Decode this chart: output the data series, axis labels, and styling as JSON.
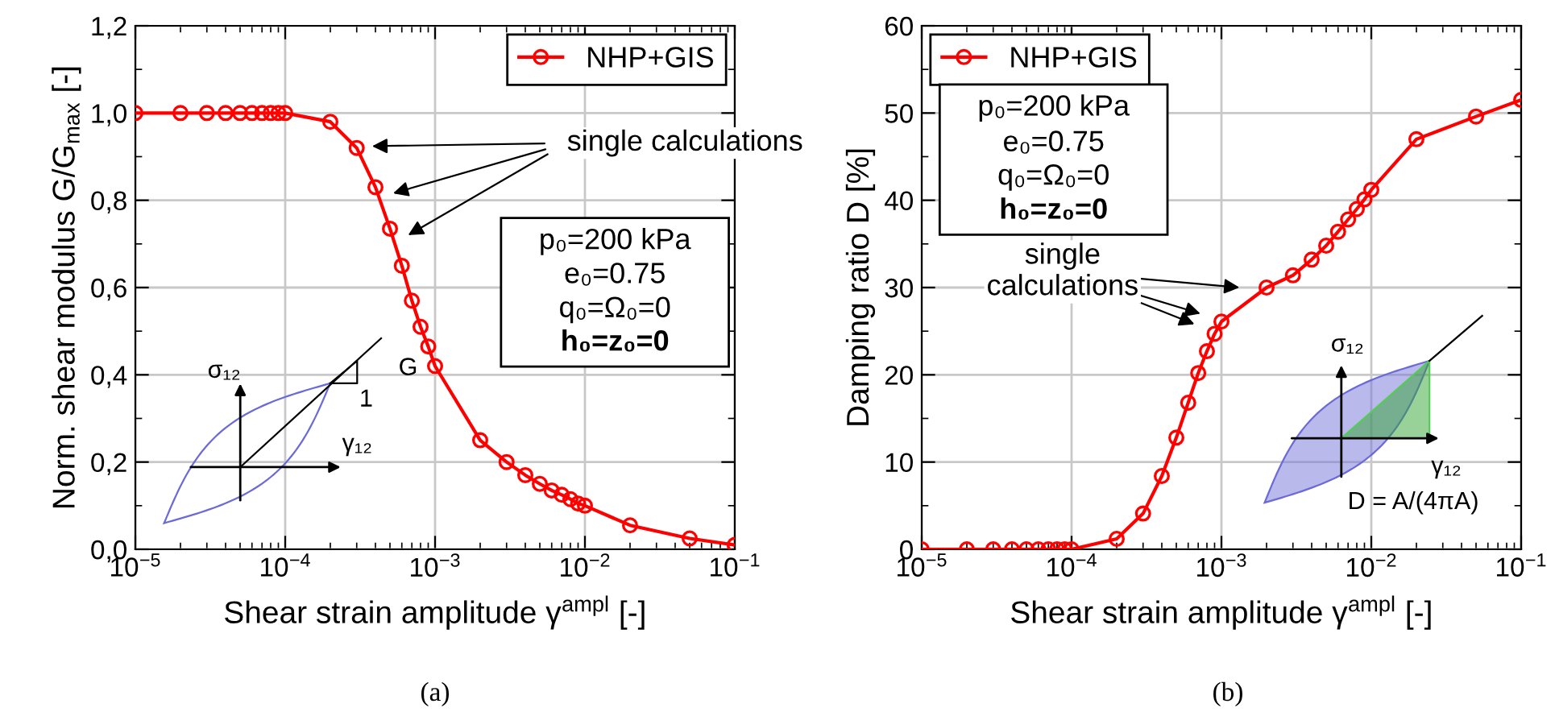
{
  "chart_data": [
    {
      "type": "line",
      "xlabel": "Shear strain amplitude γ$^{ampl}$ [-]",
      "ylabel": "Norm. shear modulus G/G$_{max}$ [-]",
      "log": "x",
      "xlim": [
        1e-05,
        0.1
      ],
      "xticks": [
        {
          "value": 1e-05,
          "label": "10$^{−5}$"
        },
        {
          "value": 0.0001,
          "label": "10$^{−4}$"
        },
        {
          "value": 0.001,
          "label": "10$^{−3}$"
        },
        {
          "value": 0.01,
          "label": "10$^{−2}$"
        },
        {
          "value": 0.1,
          "label": "10$^{−1}$"
        }
      ],
      "ylim": [
        0,
        1.2
      ],
      "yticks": [
        {
          "value": 0,
          "label": "0,0"
        },
        {
          "value": 0.2,
          "label": "0,2"
        },
        {
          "value": 0.4,
          "label": "0,4"
        },
        {
          "value": 0.6,
          "label": "0,6"
        },
        {
          "value": 0.8,
          "label": "0,8"
        },
        {
          "value": 1.0,
          "label": "1,0"
        },
        {
          "value": 1.2,
          "label": "1,2"
        }
      ],
      "grid": true,
      "legend": "top right",
      "marker": "circle",
      "line_style": "solid",
      "x": [
        1e-05,
        2e-05,
        3e-05,
        4e-05,
        5e-05,
        6e-05,
        7e-05,
        8e-05,
        9e-05,
        0.0001,
        0.0002,
        0.0003,
        0.0004,
        0.0005,
        0.0006,
        0.0007,
        0.0008,
        0.0009,
        0.001,
        0.002,
        0.003,
        0.004,
        0.005,
        0.006,
        0.007,
        0.008,
        0.009,
        0.01,
        0.02,
        0.05,
        0.1
      ],
      "series": [
        {
          "name": "NHP+GIS",
          "color": "#ff0000",
          "values": [
            1.0,
            1.0,
            1.0,
            1.0,
            1.0,
            1.0,
            1.0,
            1.0,
            1.0,
            1.0,
            0.98,
            0.92,
            0.83,
            0.735,
            0.65,
            0.57,
            0.51,
            0.465,
            0.42,
            0.25,
            0.2,
            0.17,
            0.15,
            0.135,
            0.125,
            0.115,
            0.105,
            0.1,
            0.055,
            0.025,
            0.01
          ]
        }
      ],
      "annotations": [
        "single calculations",
        "p₀=200 kPa",
        "e₀=0.75",
        "q₀=Ω₀=0",
        "h₀=z₀=0",
        "σ₁₂",
        "γ₁₂",
        "G",
        "1",
        "(a)"
      ]
    },
    {
      "type": "line",
      "xlabel": "Shear strain amplitude γ$^{ampl}$ [-]",
      "ylabel": "Damping ratio D [%]",
      "log": "x",
      "xlim": [
        1e-05,
        0.1
      ],
      "xticks": [
        {
          "value": 1e-05,
          "label": "10$^{−5}$"
        },
        {
          "value": 0.0001,
          "label": "10$^{−4}$"
        },
        {
          "value": 0.001,
          "label": "10$^{−3}$"
        },
        {
          "value": 0.01,
          "label": "10$^{−2}$"
        },
        {
          "value": 0.1,
          "label": "10$^{−1}$"
        }
      ],
      "ylim": [
        0,
        60
      ],
      "yticks": [
        0,
        10,
        20,
        30,
        40,
        50,
        60
      ],
      "grid": true,
      "legend": "top left",
      "marker": "circle",
      "line_style": "solid",
      "x": [
        1e-05,
        2e-05,
        3e-05,
        4e-05,
        5e-05,
        6e-05,
        7e-05,
        8e-05,
        9e-05,
        0.0001,
        0.0002,
        0.0003,
        0.0004,
        0.0005,
        0.0006,
        0.0007,
        0.0008,
        0.0009,
        0.001,
        0.002,
        0.003,
        0.004,
        0.005,
        0.006,
        0.007,
        0.008,
        0.009,
        0.01,
        0.02,
        0.05,
        0.1
      ],
      "series": [
        {
          "name": "NHP+GIS",
          "color": "#ff0000",
          "values": [
            0,
            0,
            0,
            0,
            0,
            0,
            0,
            0,
            0,
            0,
            1.2,
            4.1,
            8.4,
            12.8,
            16.8,
            20.2,
            22.7,
            24.7,
            26.1,
            30.0,
            31.4,
            33.2,
            34.8,
            36.4,
            37.8,
            39.0,
            40.1,
            41.2,
            47.0,
            49.6,
            51.5
          ]
        }
      ],
      "annotations": [
        "single\ncalculations",
        "p₀=200 kPa",
        "e₀=0.75",
        "q₀=Ω₀=0",
        "h₀=z₀=0",
        "σ₁₂",
        "γ₁₂",
        "D = A/(4πA)",
        "(b)"
      ]
    }
  ]
}
